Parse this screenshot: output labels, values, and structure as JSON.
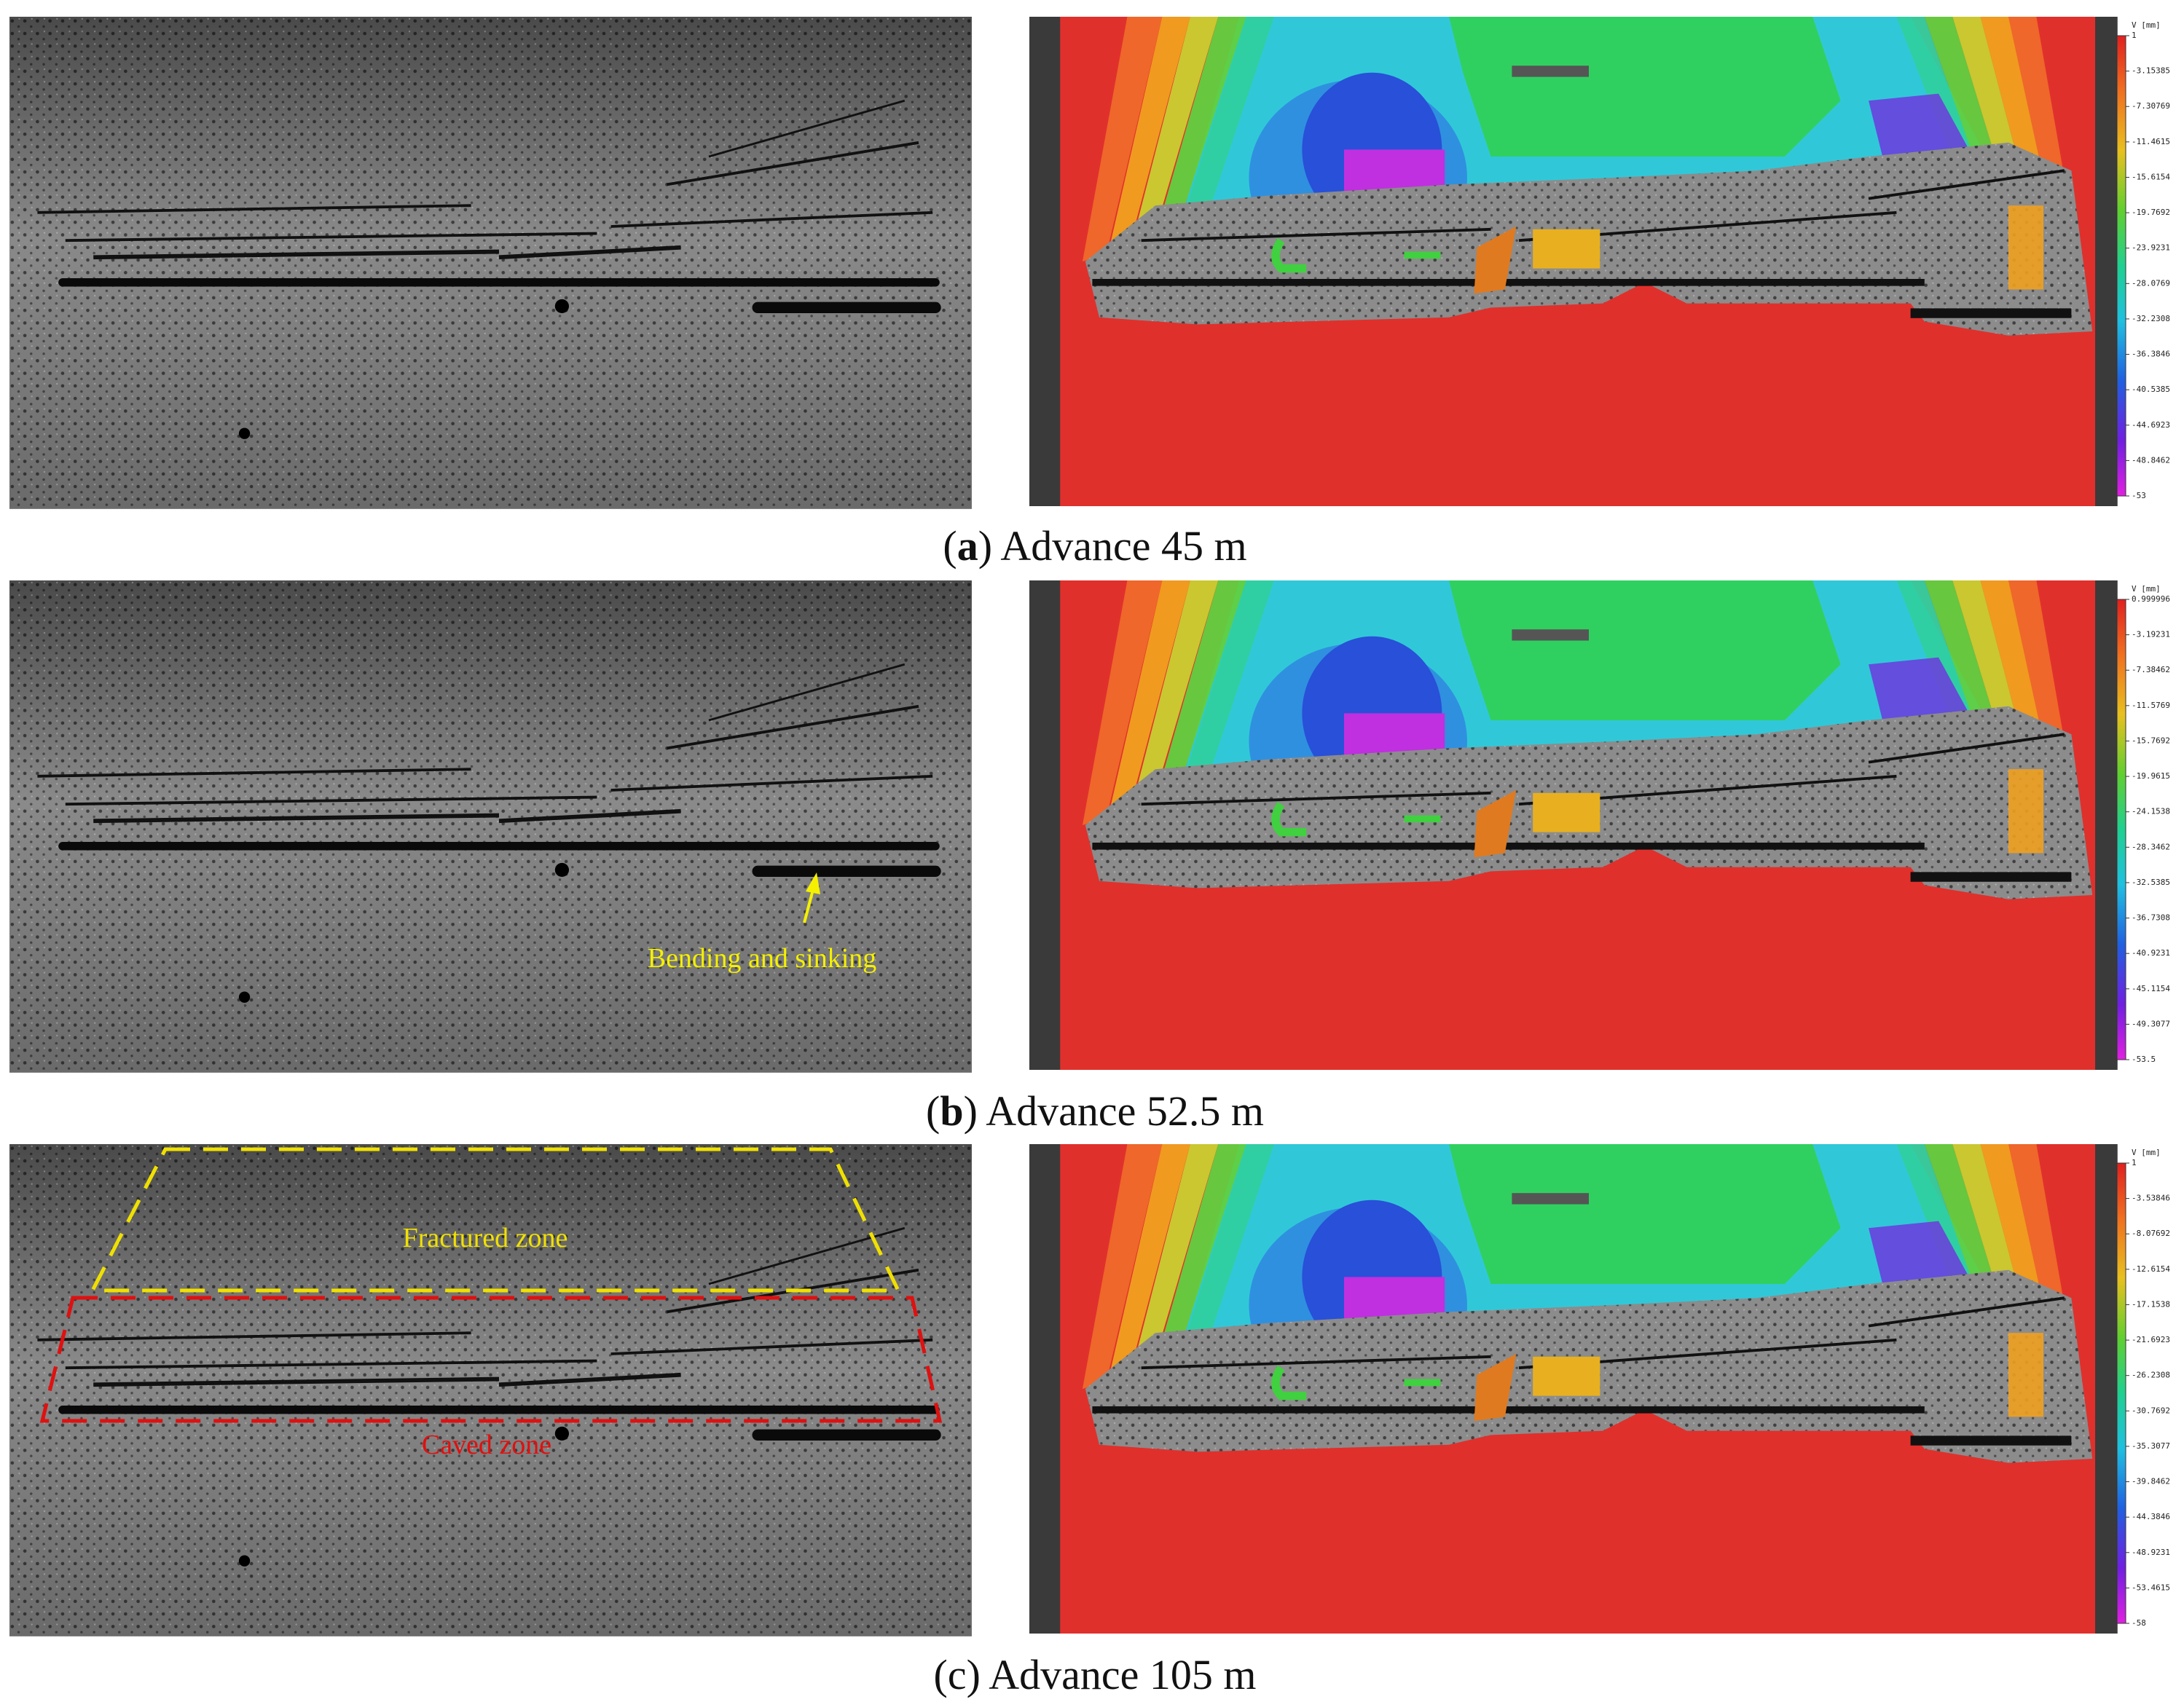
{
  "panels": [
    {
      "caption": [
        "(",
        "a",
        ") Advance 45 m"
      ],
      "letter_bold": true,
      "colorbar": {
        "title": "V [mm]",
        "ticks": [
          "1",
          "-3.15385",
          "-7.30769",
          "-11.4615",
          "-15.6154",
          "-19.7692",
          "-23.9231",
          "-28.0769",
          "-32.2308",
          "-36.3846",
          "-40.5385",
          "-44.6923",
          "-48.8462",
          "-53"
        ]
      }
    },
    {
      "caption": [
        "(",
        "b",
        ") Advance 52.5 m"
      ],
      "letter_bold": true,
      "colorbar": {
        "title": "V [mm]",
        "ticks": [
          "0.999996",
          "-3.19231",
          "-7.38462",
          "-11.5769",
          "-15.7692",
          "-19.9615",
          "-24.1538",
          "-28.3462",
          "-32.5385",
          "-36.7308",
          "-40.9231",
          "-45.1154",
          "-49.3077",
          "-53.5"
        ]
      }
    },
    {
      "caption": [
        "(",
        "c",
        ") Advance 105 m"
      ],
      "letter_bold": false,
      "colorbar": {
        "title": "V [mm]",
        "ticks": [
          "1",
          "-3.53846",
          "-8.07692",
          "-12.6154",
          "-17.1538",
          "-21.6923",
          "-26.2308",
          "-30.7692",
          "-35.3077",
          "-39.8462",
          "-44.3846",
          "-48.9231",
          "-53.4615",
          "-58"
        ]
      }
    }
  ],
  "annotations": {
    "bending": "Bending and sinking",
    "fractured": "Fractured zone",
    "caved": "Caved zone"
  }
}
